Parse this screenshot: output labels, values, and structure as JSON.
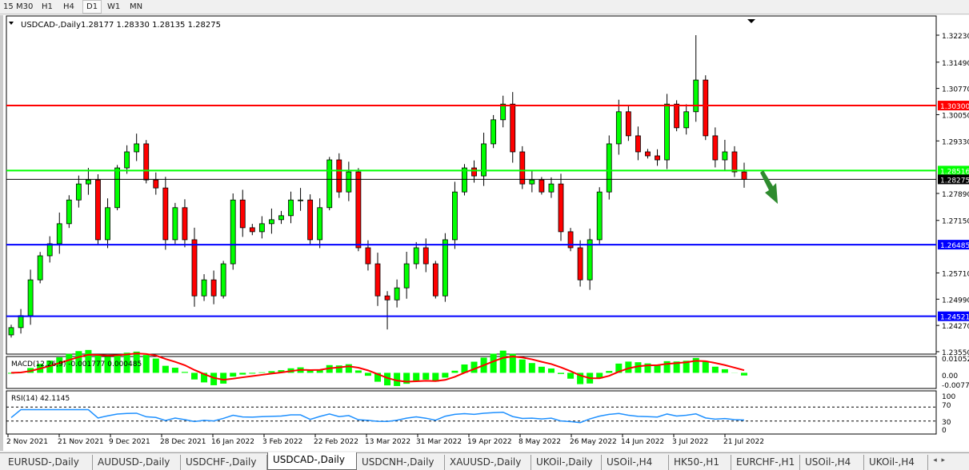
{
  "timeframes": [
    {
      "label": "15",
      "active": false
    },
    {
      "label": "M30",
      "active": false
    },
    {
      "label": "H1",
      "active": false
    },
    {
      "label": "H4",
      "active": false
    },
    {
      "label": "D1",
      "active": true
    },
    {
      "label": "W1",
      "active": false
    },
    {
      "label": "MN",
      "active": false
    }
  ],
  "chart": {
    "symbol_label": "USDCAD-,Daily",
    "ohlc_label": "1.28177 1.28330 1.28135 1.28275",
    "colors": {
      "bull": "#00ff00",
      "bear": "#ff0000",
      "resistance": "#ff0000",
      "support_green": "#00ff00",
      "current": "#000000",
      "support_blue": "#0000ff",
      "arrow": "#2e8b2e",
      "macd_hist": "#00ff00",
      "macd_signal": "#ff0000",
      "rsi": "#1e90ff"
    }
  },
  "chart_data": {
    "type": "candlestick",
    "symbol": "USDCAD-",
    "timeframe": "Daily",
    "ylim": [
      1.231,
      1.3265
    ],
    "price_ticks": [
      "1.32230",
      "1.31490",
      "1.30770",
      "1.30050",
      "1.29330",
      "1.27890",
      "1.27150",
      "1.25710",
      "1.24990",
      "1.24270",
      "1.23550"
    ],
    "x_ticks": [
      "2 Nov 2021",
      "21 Nov 2021",
      "9 Dec 2021",
      "28 Dec 2021",
      "16 Jan 2022",
      "3 Feb 2022",
      "22 Feb 2022",
      "13 Mar 2022",
      "31 Mar 2022",
      "19 Apr 2022",
      "8 May 2022",
      "26 May 2022",
      "14 Jun 2022",
      "3 Jul 2022",
      "21 Jul 2022"
    ],
    "closes": [
      1.2421,
      1.2454,
      1.2552,
      1.2618,
      1.2651,
      1.2706,
      1.2771,
      1.2815,
      1.2826,
      1.2662,
      1.275,
      1.2859,
      1.2903,
      1.2925,
      1.2826,
      1.2804,
      1.2662,
      1.275,
      1.2662,
      1.2508,
      1.2552,
      1.2508,
      1.2596,
      1.2771,
      1.2695,
      1.2684,
      1.2706,
      1.2717,
      1.2728,
      1.2771,
      1.2771,
      1.2662,
      1.275,
      1.2881,
      1.2793,
      1.2848,
      1.264,
      1.2596,
      1.2508,
      1.2497,
      1.253,
      1.2596,
      1.264,
      1.2596,
      1.2508,
      1.2662,
      1.2793,
      1.2859,
      1.2837,
      1.2925,
      1.2991,
      1.3034,
      1.2903,
      1.2815,
      1.2826,
      1.2793,
      1.2815,
      1.2684,
      1.264,
      1.2552,
      1.2662,
      1.2793,
      1.2925,
      1.3013,
      1.2947,
      1.2903,
      1.2892,
      1.2881,
      1.3034,
      1.2969,
      1.3013,
      1.31,
      1.2947,
      1.2881,
      1.2903,
      1.2848,
      1.28275
    ],
    "horizontal_levels": [
      {
        "price": 1.303,
        "label": "1.30300",
        "color": "#ff0000"
      },
      {
        "price": 1.28516,
        "label": "1.28516",
        "color": "#00ff00"
      },
      {
        "price": 1.28275,
        "label": "1.28275",
        "color": "#000000"
      },
      {
        "price": 1.26485,
        "label": "1.26485",
        "color": "#0000ff"
      },
      {
        "price": 1.24521,
        "label": "1.24521",
        "color": "#0000ff"
      }
    ],
    "macd": {
      "label": "MACD(12,26,9) -0.001777 0.000485",
      "ticks": [
        "0.01052",
        "0.00",
        "-0.00774"
      ],
      "ylim": [
        -0.00774,
        0.01052
      ]
    },
    "rsi": {
      "label": "RSI(14) 42.1145",
      "ticks": [
        "100",
        "70",
        "30",
        "0"
      ],
      "levels": [
        70,
        30
      ]
    }
  },
  "tabs": [
    {
      "label": "EURUSD-,Daily",
      "active": false
    },
    {
      "label": "AUDUSD-,Daily",
      "active": false
    },
    {
      "label": "USDCHF-,Daily",
      "active": false
    },
    {
      "label": "USDCAD-,Daily",
      "active": true
    },
    {
      "label": "USDCNH-,Daily",
      "active": false
    },
    {
      "label": "XAUUSD-,Daily",
      "active": false
    },
    {
      "label": "UKOil-,Daily",
      "active": false
    },
    {
      "label": "USOil-,H4",
      "active": false
    },
    {
      "label": "HK50-,H1",
      "active": false
    },
    {
      "label": "EURCHF-,H1",
      "active": false
    },
    {
      "label": "USOil-,H4",
      "active": false
    },
    {
      "label": "UKOil-,H4",
      "active": false
    }
  ],
  "tab_nav": {
    "prev": "◂",
    "next": "▸"
  }
}
